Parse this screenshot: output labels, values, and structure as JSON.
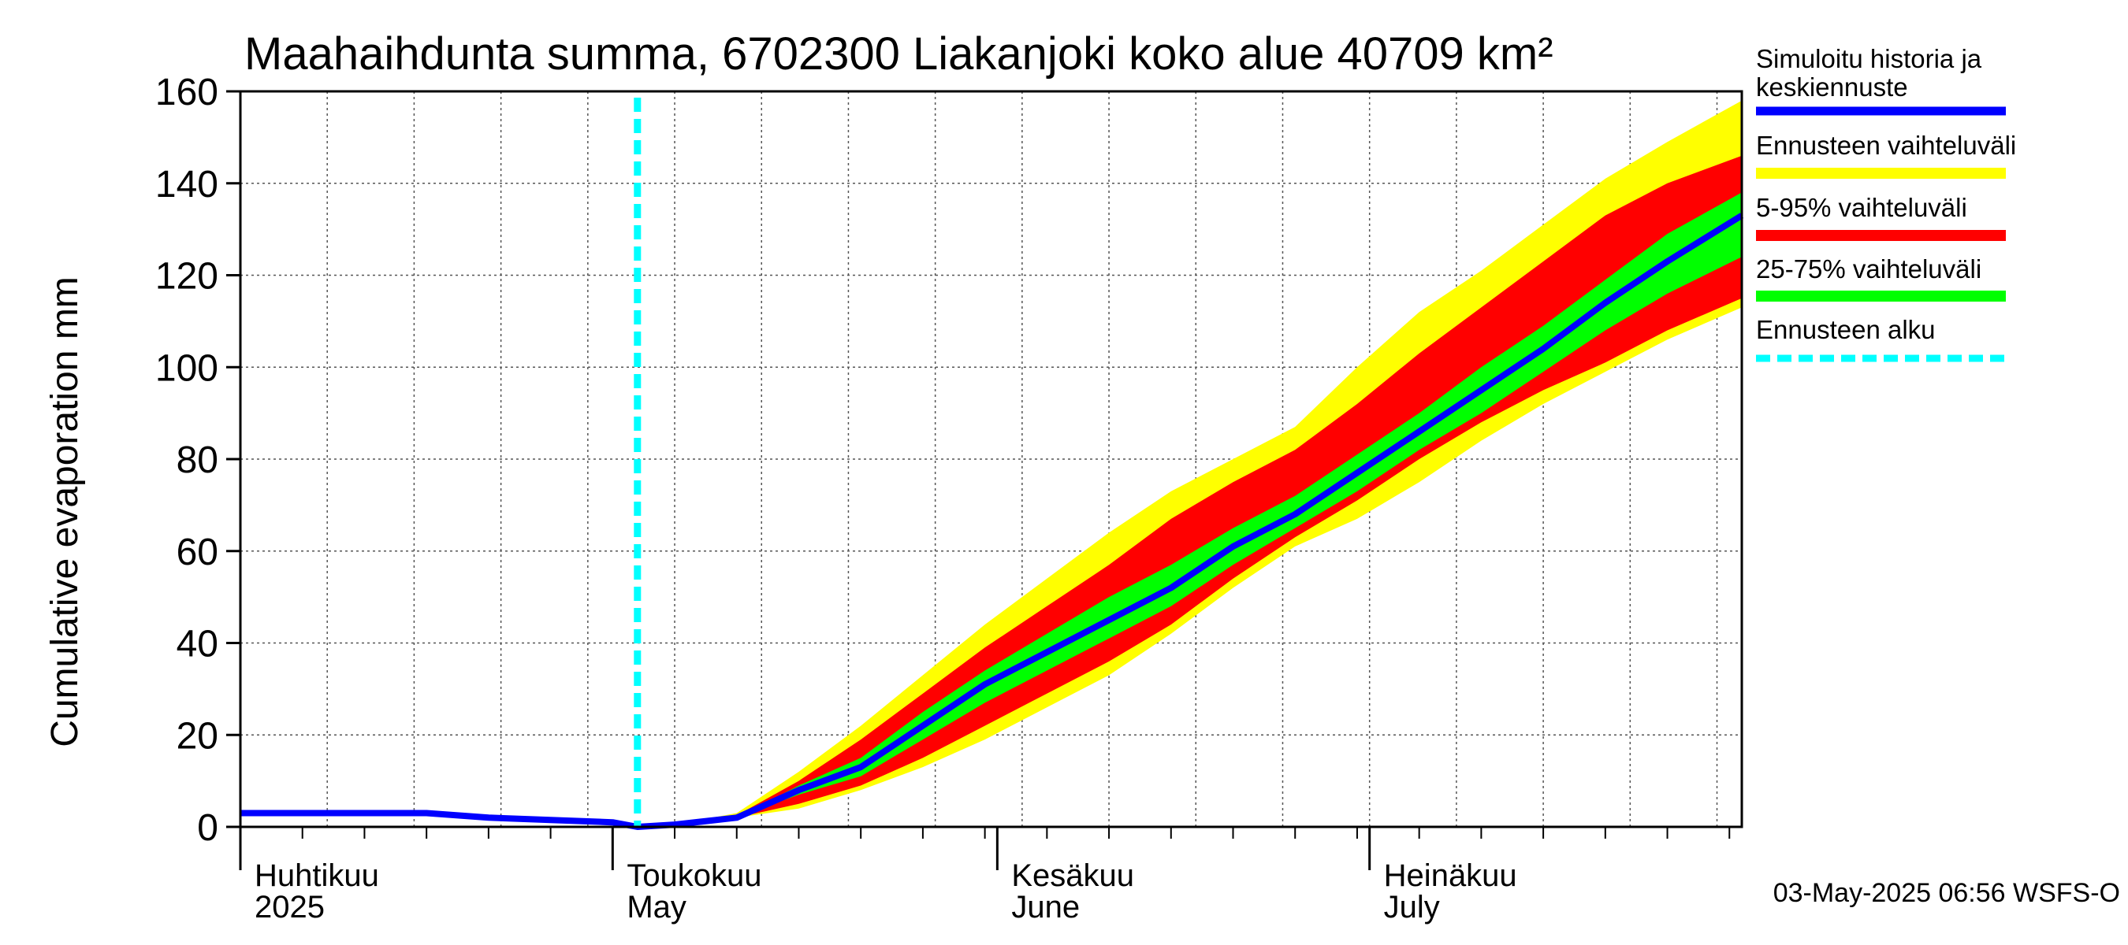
{
  "chart_data": {
    "type": "area",
    "title": "Maahaihdunta summa, 6702300 Liakanjoki koko alue 40709 km²",
    "ylabel": "Cumulative evaporation   mm",
    "ylim": [
      0,
      160
    ],
    "yticks": [
      "0",
      "20",
      "40",
      "60",
      "80",
      "100",
      "120",
      "140",
      "160"
    ],
    "xlim": [
      "2025-04-01",
      "2025-07-31"
    ],
    "grid": true,
    "month_labels": [
      {
        "date": "2025-04-01",
        "fi": "Huhtikuu",
        "en": "2025"
      },
      {
        "date": "2025-05-01",
        "fi": "Toukokuu",
        "en": "May"
      },
      {
        "date": "2025-06-01",
        "fi": "Kesäkuu",
        "en": "June"
      },
      {
        "date": "2025-07-01",
        "fi": "Heinäkuu",
        "en": "July"
      }
    ],
    "forecast_start": "2025-05-03",
    "x": [
      "2025-04-01",
      "2025-04-06",
      "2025-04-11",
      "2025-04-16",
      "2025-04-21",
      "2025-04-26",
      "2025-05-01",
      "2025-05-03",
      "2025-05-06",
      "2025-05-11",
      "2025-05-16",
      "2025-05-21",
      "2025-05-26",
      "2025-05-31",
      "2025-06-05",
      "2025-06-10",
      "2025-06-15",
      "2025-06-20",
      "2025-06-25",
      "2025-06-30",
      "2025-07-05",
      "2025-07-10",
      "2025-07-15",
      "2025-07-20",
      "2025-07-25",
      "2025-07-31"
    ],
    "series": [
      {
        "name": "Simuloitu historia ja keskiennuste",
        "color": "#0000ff",
        "values": [
          3,
          3,
          3,
          3,
          2,
          1.5,
          1,
          0,
          0.5,
          2,
          8,
          13,
          22,
          31,
          38,
          45,
          52,
          61,
          68,
          77,
          86,
          95,
          104,
          114,
          123,
          133
        ]
      },
      {
        "name": "Ennusteen vaihteluväli",
        "color": "#ffff00",
        "lower": [
          3,
          3,
          3,
          3,
          2,
          1.5,
          1,
          0,
          0.5,
          2,
          4,
          8,
          13,
          19,
          26,
          33,
          42,
          52,
          61,
          67,
          75,
          84,
          92,
          99,
          106,
          113
        ],
        "upper": [
          3,
          3,
          3,
          3,
          2,
          1.5,
          1,
          0,
          0.5,
          3,
          12,
          22,
          33,
          44,
          54,
          64,
          73,
          80,
          87,
          100,
          112,
          121,
          131,
          141,
          149,
          158
        ]
      },
      {
        "name": "5-95% vaihteluväli",
        "color": "#ff0000",
        "lower": [
          3,
          3,
          3,
          3,
          2,
          1.5,
          1,
          0,
          0.5,
          2,
          5,
          9,
          15,
          22,
          29,
          36,
          44,
          54,
          63,
          71,
          80,
          88,
          95,
          101,
          108,
          115
        ],
        "upper": [
          3,
          3,
          3,
          3,
          2,
          1.5,
          1,
          0,
          0.5,
          2.5,
          10,
          19,
          29,
          39,
          48,
          57,
          67,
          75,
          82,
          92,
          103,
          113,
          123,
          133,
          140,
          146
        ]
      },
      {
        "name": "25-75% vaihteluväli",
        "color": "#00ff00",
        "lower": [
          3,
          3,
          3,
          3,
          2,
          1.5,
          1,
          0,
          0.5,
          2,
          7,
          11,
          19,
          27,
          34,
          41,
          48,
          57,
          65,
          73,
          82,
          90,
          99,
          108,
          116,
          124
        ],
        "upper": [
          3,
          3,
          3,
          3,
          2,
          1.5,
          1,
          0,
          0.5,
          2,
          9,
          15,
          25,
          34,
          42,
          50,
          57,
          65,
          72,
          81,
          90,
          100,
          109,
          119,
          129,
          138
        ]
      },
      {
        "name": "Ennusteen alku",
        "color": "#00ffff"
      }
    ]
  },
  "footer": "03-May-2025 06:56 WSFS-O"
}
